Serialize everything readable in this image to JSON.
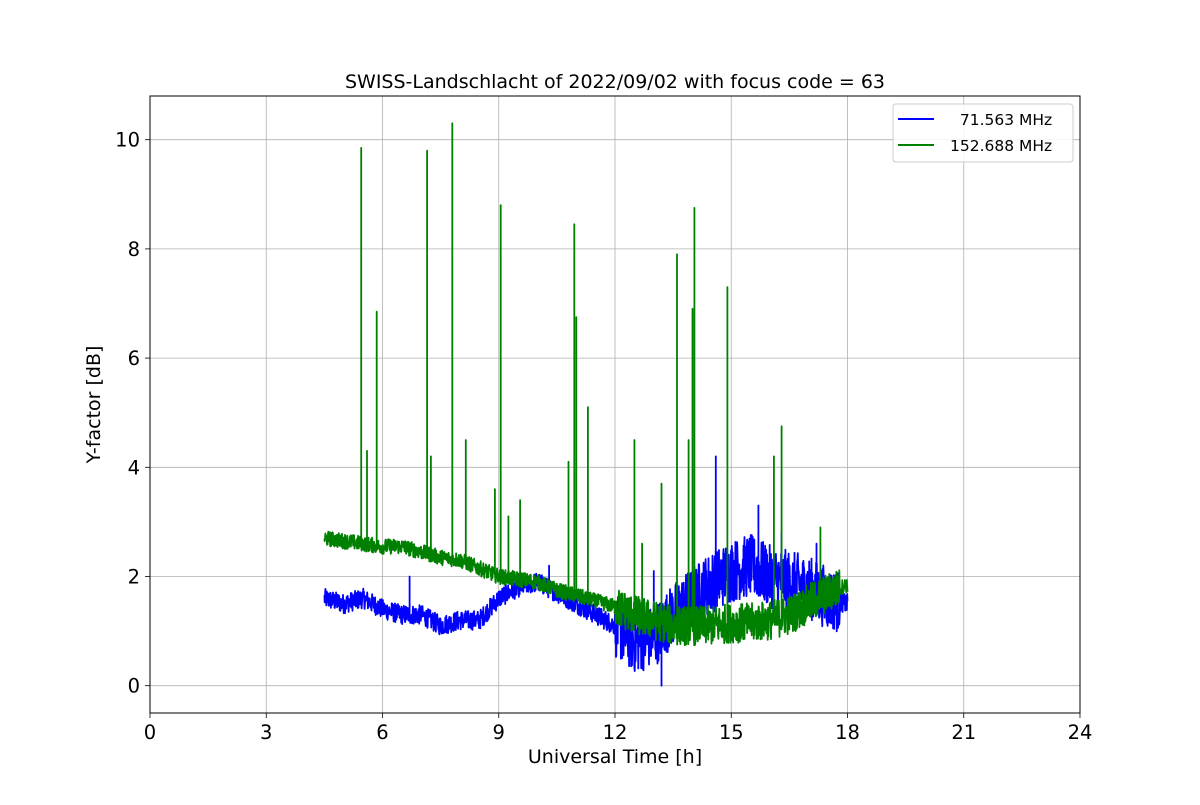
{
  "chart_data": {
    "type": "line",
    "title": "SWISS-Landschlacht of 2022/09/02 with focus code = 63",
    "xlabel": "Universal Time [h]",
    "ylabel": "Y-factor [dB]",
    "xlim": [
      0,
      24
    ],
    "ylim": [
      -0.5,
      10.8
    ],
    "xticks": [
      0,
      3,
      6,
      9,
      12,
      15,
      18,
      21,
      24
    ],
    "yticks": [
      0,
      2,
      4,
      6,
      8,
      10
    ],
    "xtick_labels": [
      "0",
      "3",
      "6",
      "9",
      "12",
      "15",
      "18",
      "21",
      "24"
    ],
    "ytick_labels": [
      "0",
      "2",
      "4",
      "6",
      "8",
      "10"
    ],
    "grid": true,
    "legend_position": "top-right",
    "series": [
      {
        "name": "  71.563 MHz",
        "color": "#0000ff",
        "x": [
          4.5,
          5.0,
          5.5,
          6.0,
          6.5,
          7.0,
          7.5,
          8.0,
          8.5,
          9.0,
          9.5,
          10.0,
          10.5,
          11.0,
          11.5,
          12.0,
          12.5,
          13.0,
          13.5,
          14.0,
          14.5,
          15.0,
          15.5,
          16.0,
          16.5,
          17.0,
          17.5,
          18.0
        ],
        "values": [
          1.6,
          1.5,
          1.6,
          1.4,
          1.3,
          1.3,
          1.1,
          1.2,
          1.2,
          1.6,
          1.8,
          1.9,
          1.7,
          1.5,
          1.3,
          1.1,
          0.8,
          0.9,
          1.3,
          1.6,
          1.9,
          2.1,
          2.2,
          2.0,
          1.9,
          1.8,
          1.6,
          1.5
        ],
        "spikes": [
          [
            6.7,
            2.0
          ],
          [
            10.3,
            2.2
          ],
          [
            13.0,
            2.1
          ],
          [
            13.2,
            0.0
          ],
          [
            14.6,
            4.2
          ],
          [
            15.7,
            3.3
          ],
          [
            16.3,
            2.8
          ],
          [
            17.2,
            2.6
          ]
        ]
      },
      {
        "name": "152.688 MHz",
        "color": "#008000",
        "x": [
          4.5,
          5.0,
          5.5,
          6.0,
          6.5,
          7.0,
          7.5,
          8.0,
          8.5,
          9.0,
          9.5,
          10.0,
          10.5,
          11.0,
          11.5,
          12.0,
          12.5,
          13.0,
          13.5,
          14.0,
          14.5,
          15.0,
          15.5,
          16.0,
          16.5,
          17.0,
          17.5,
          18.0
        ],
        "values": [
          2.7,
          2.65,
          2.6,
          2.55,
          2.55,
          2.45,
          2.35,
          2.3,
          2.15,
          2.0,
          1.95,
          1.9,
          1.75,
          1.65,
          1.55,
          1.45,
          1.3,
          1.2,
          1.1,
          1.1,
          1.1,
          1.15,
          1.15,
          1.2,
          1.3,
          1.5,
          1.7,
          1.85
        ],
        "spikes": [
          [
            5.45,
            9.85
          ],
          [
            5.6,
            4.3
          ],
          [
            5.85,
            6.85
          ],
          [
            7.15,
            9.8
          ],
          [
            7.25,
            4.2
          ],
          [
            7.8,
            10.3
          ],
          [
            8.15,
            4.5
          ],
          [
            8.9,
            3.6
          ],
          [
            9.05,
            8.8
          ],
          [
            9.25,
            3.1
          ],
          [
            9.55,
            3.4
          ],
          [
            10.8,
            4.1
          ],
          [
            10.95,
            8.45
          ],
          [
            11.0,
            6.75
          ],
          [
            11.3,
            5.1
          ],
          [
            12.5,
            4.5
          ],
          [
            12.7,
            2.6
          ],
          [
            13.2,
            3.7
          ],
          [
            13.6,
            7.9
          ],
          [
            13.9,
            4.5
          ],
          [
            14.0,
            6.9
          ],
          [
            14.05,
            8.75
          ],
          [
            14.9,
            7.3
          ],
          [
            16.1,
            4.2
          ],
          [
            16.3,
            4.75
          ],
          [
            17.3,
            2.9
          ]
        ]
      }
    ]
  }
}
